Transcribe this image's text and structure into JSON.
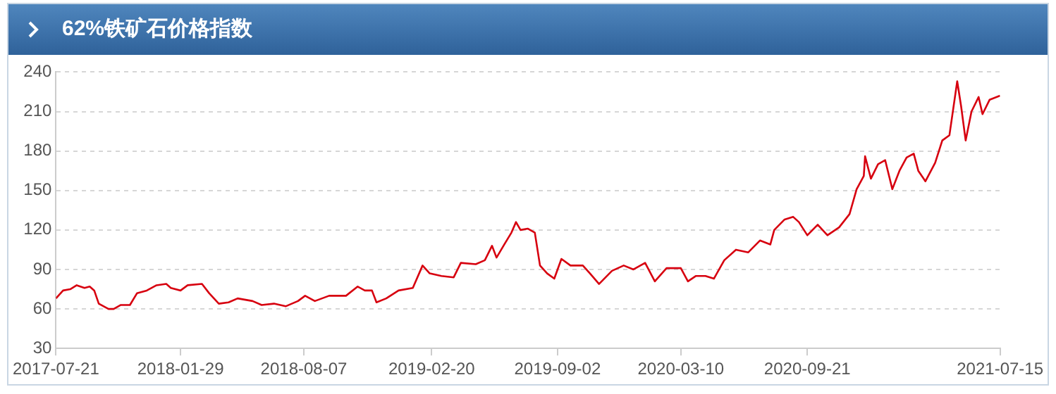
{
  "chart_data": {
    "type": "line",
    "title": "62%铁矿石价格指数",
    "x": [
      "2017-07-21",
      "2017-08-01",
      "2017-08-12",
      "2017-08-22",
      "2017-09-03",
      "2017-09-11",
      "2017-09-18",
      "2017-09-25",
      "2017-10-10",
      "2017-10-18",
      "2017-10-29",
      "2017-11-12",
      "2017-11-23",
      "2017-12-08",
      "2017-12-23",
      "2018-01-07",
      "2018-01-14",
      "2018-01-29",
      "2018-02-09",
      "2018-03-03",
      "2018-03-14",
      "2018-03-29",
      "2018-04-13",
      "2018-04-27",
      "2018-05-20",
      "2018-06-03",
      "2018-06-22",
      "2018-07-10",
      "2018-07-29",
      "2018-08-09",
      "2018-08-24",
      "2018-09-15",
      "2018-10-11",
      "2018-10-29",
      "2018-11-09",
      "2018-11-20",
      "2018-11-27",
      "2018-12-12",
      "2018-12-31",
      "2019-01-22",
      "2019-02-06",
      "2019-02-17",
      "2019-03-07",
      "2019-03-26",
      "2019-04-06",
      "2019-04-29",
      "2019-05-13",
      "2019-05-24",
      "2019-05-31",
      "2019-06-12",
      "2019-06-23",
      "2019-06-30",
      "2019-07-07",
      "2019-07-18",
      "2019-07-29",
      "2019-08-06",
      "2019-08-17",
      "2019-08-28",
      "2019-09-08",
      "2019-09-22",
      "2019-10-11",
      "2019-10-22",
      "2019-11-05",
      "2019-11-25",
      "2019-12-13",
      "2019-12-28",
      "2020-01-15",
      "2020-01-30",
      "2020-02-17",
      "2020-03-10",
      "2020-03-21",
      "2020-04-02",
      "2020-04-17",
      "2020-04-30",
      "2020-05-16",
      "2020-06-03",
      "2020-06-22",
      "2020-07-10",
      "2020-07-26",
      "2020-08-01",
      "2020-08-17",
      "2020-08-30",
      "2020-09-08",
      "2020-09-21",
      "2020-10-07",
      "2020-10-22",
      "2020-11-09",
      "2020-11-25",
      "2020-12-06",
      "2020-12-17",
      "2020-12-19",
      "2020-12-28",
      "2021-01-08",
      "2021-01-19",
      "2021-01-30",
      "2021-02-10",
      "2021-02-21",
      "2021-03-04",
      "2021-03-11",
      "2021-03-22",
      "2021-04-06",
      "2021-04-17",
      "2021-04-28",
      "2021-05-10",
      "2021-05-16",
      "2021-05-23",
      "2021-06-01",
      "2021-06-12",
      "2021-06-18",
      "2021-06-29",
      "2021-07-15"
    ],
    "series": [
      {
        "color": "#d7000f",
        "values": [
          68,
          74,
          75,
          78,
          76,
          77,
          74,
          64,
          60,
          60,
          63,
          63,
          72,
          74,
          78,
          79,
          76,
          74,
          78,
          79,
          72,
          64,
          65,
          68,
          66,
          63,
          64,
          62,
          66,
          70,
          66,
          70,
          70,
          77,
          74,
          74,
          65,
          68,
          74,
          76,
          93,
          87,
          85,
          84,
          95,
          94,
          97,
          108,
          99,
          109,
          118,
          126,
          120,
          121,
          118,
          93,
          87,
          83,
          98,
          93,
          93,
          87,
          79,
          89,
          93,
          90,
          95,
          81,
          91,
          91,
          81,
          85,
          85,
          83,
          97,
          105,
          103,
          112,
          109,
          120,
          128,
          130,
          126,
          116,
          124,
          116,
          122,
          132,
          151,
          161,
          176,
          159,
          170,
          173,
          151,
          165,
          175,
          178,
          165,
          157,
          171,
          188,
          192,
          233,
          214,
          188,
          210,
          221,
          208,
          219,
          222
        ]
      }
    ],
    "xlim": [
      "2017-07-21",
      "2021-07-15"
    ],
    "xticks": [
      "2017-07-21",
      "2018-01-29",
      "2018-08-07",
      "2019-02-20",
      "2019-09-02",
      "2020-03-10",
      "2020-09-21",
      "2021-07-15"
    ],
    "ylim": [
      30,
      240
    ],
    "yticks": [
      30,
      60,
      90,
      120,
      150,
      180,
      210,
      240
    ],
    "grid": "y",
    "legend": false,
    "marker": "none",
    "line_style": "solid"
  }
}
